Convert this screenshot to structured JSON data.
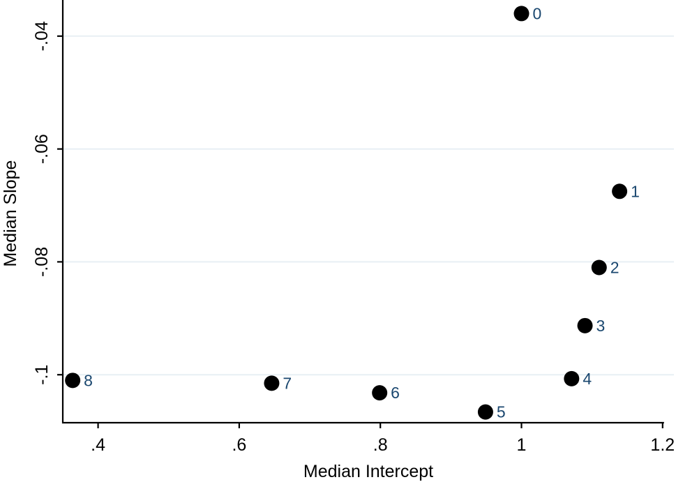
{
  "chart_data": {
    "type": "scatter",
    "title": "",
    "xlabel": "Median Intercept",
    "ylabel": "Median Slope",
    "xlim": [
      0.35,
      1.216
    ],
    "ylim": [
      -0.1085,
      -0.0336
    ],
    "grid": "horizontal gridlines at y ticks",
    "legend": "none",
    "x_ticks": [
      {
        "v": 0.4,
        "label": ".4"
      },
      {
        "v": 0.6,
        "label": ".6"
      },
      {
        "v": 0.8,
        "label": ".8"
      },
      {
        "v": 1.0,
        "label": "1"
      },
      {
        "v": 1.2,
        "label": "1.2"
      }
    ],
    "y_ticks": [
      {
        "v": -0.04,
        "label": "-.04"
      },
      {
        "v": -0.06,
        "label": "-.06"
      },
      {
        "v": -0.08,
        "label": "-.08"
      },
      {
        "v": -0.1,
        "label": "-.1"
      }
    ],
    "points": [
      {
        "label": "0",
        "x": 1.0,
        "y": -0.036
      },
      {
        "label": "1",
        "x": 1.139,
        "y": -0.0675
      },
      {
        "label": "2",
        "x": 1.11,
        "y": -0.081
      },
      {
        "label": "3",
        "x": 1.09,
        "y": -0.0913
      },
      {
        "label": "4",
        "x": 1.071,
        "y": -0.1007
      },
      {
        "label": "5",
        "x": 0.949,
        "y": -0.1066
      },
      {
        "label": "6",
        "x": 0.799,
        "y": -0.1032
      },
      {
        "label": "7",
        "x": 0.646,
        "y": -0.1015
      },
      {
        "label": "8",
        "x": 0.364,
        "y": -0.101
      }
    ],
    "colors": {
      "marker": "#000000",
      "marker_label": "#1a476f",
      "gridline": "#e8eff4",
      "axis": "#000000",
      "background": "#ffffff"
    }
  }
}
